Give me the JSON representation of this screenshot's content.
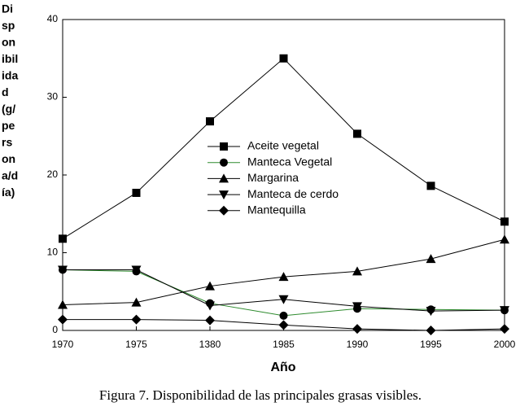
{
  "chart_data": {
    "type": "line",
    "ylabel_lines": [
      "Di",
      "sp",
      "on",
      "ibil",
      "ida",
      "d",
      "(g/",
      "pe",
      "rs",
      "on",
      "a/d",
      "ía)"
    ],
    "xlabel": "Año",
    "caption": "Figura 7. Disponibilidad de las principales grasas visibles.",
    "categories": [
      "1970",
      "1975",
      "1380",
      "1985",
      "1990",
      "1995",
      "2000"
    ],
    "ylim": [
      0,
      40
    ],
    "yticks": [
      0,
      10,
      20,
      30,
      40
    ],
    "series": [
      {
        "name": "Aceite vegetal",
        "color": "#000000",
        "marker": "square",
        "values": [
          11.8,
          17.7,
          26.9,
          35,
          25.3,
          18.6,
          14
        ]
      },
      {
        "name": "Manteca Vegetal",
        "color": "#2e8b2e",
        "marker": "circle",
        "values": [
          7.8,
          7.6,
          3.5,
          1.9,
          2.8,
          2.7,
          2.6
        ]
      },
      {
        "name": "Margarina",
        "color": "#000000",
        "marker": "triangle-up",
        "values": [
          3.3,
          3.6,
          5.7,
          6.9,
          7.6,
          9.2,
          11.7
        ]
      },
      {
        "name": "Manteca de cerdo",
        "color": "#000000",
        "marker": "triangle-down",
        "values": [
          7.8,
          7.8,
          3.2,
          4.0,
          3.1,
          2.5,
          2.6
        ]
      },
      {
        "name": "Mantequilla",
        "color": "#000000",
        "marker": "diamond",
        "values": [
          1.4,
          1.4,
          1.3,
          0.7,
          0.2,
          0.0,
          0.2
        ]
      }
    ]
  }
}
